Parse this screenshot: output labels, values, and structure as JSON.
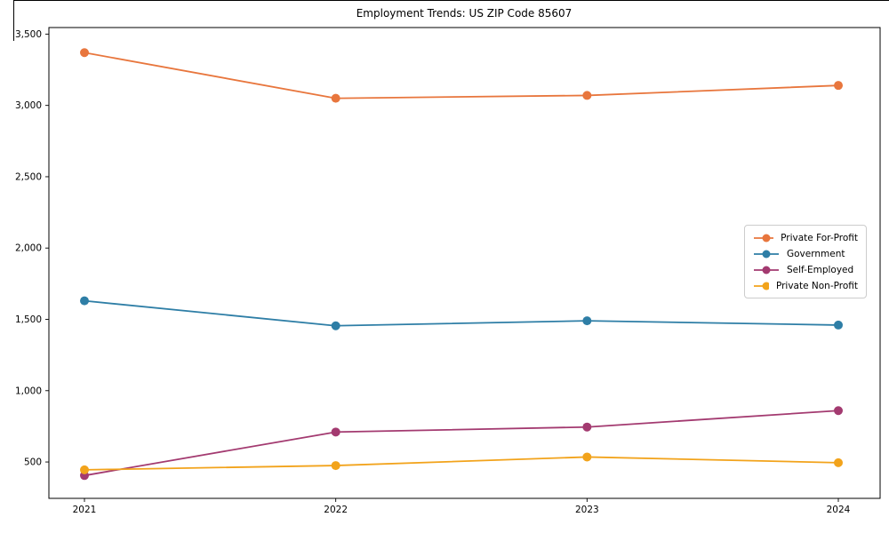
{
  "figure": {
    "background": "#ffffff",
    "border_color": "#000000"
  },
  "chart_data": {
    "type": "line",
    "title": "Employment Trends: US ZIP Code 85607",
    "categories": [
      "2021",
      "2022",
      "2023",
      "2024"
    ],
    "series": [
      {
        "name": "Private For-Profit",
        "color": "#E8763D",
        "values": [
          3370,
          3050,
          3070,
          3140
        ]
      },
      {
        "name": "Government",
        "color": "#2E7EA6",
        "values": [
          1630,
          1455,
          1490,
          1460
        ]
      },
      {
        "name": "Self-Employed",
        "color": "#A33A70",
        "values": [
          405,
          710,
          745,
          860
        ]
      },
      {
        "name": "Private Non-Profit",
        "color": "#F2A31B",
        "values": [
          445,
          475,
          535,
          495
        ]
      }
    ],
    "xlabel": "",
    "ylabel": "",
    "ylim": [
      245,
      3546
    ],
    "yticks": {
      "values": [
        500,
        1000,
        1500,
        2000,
        2500,
        3000,
        3500
      ],
      "labels": [
        "500",
        "1,000",
        "1,500",
        "2,000",
        "2,500",
        "3,000",
        "3,500"
      ]
    },
    "grid": false,
    "marker": "circle",
    "legend": {
      "position": "center-right"
    },
    "axis_color": "#000000",
    "tick_label_color": "#000000"
  }
}
